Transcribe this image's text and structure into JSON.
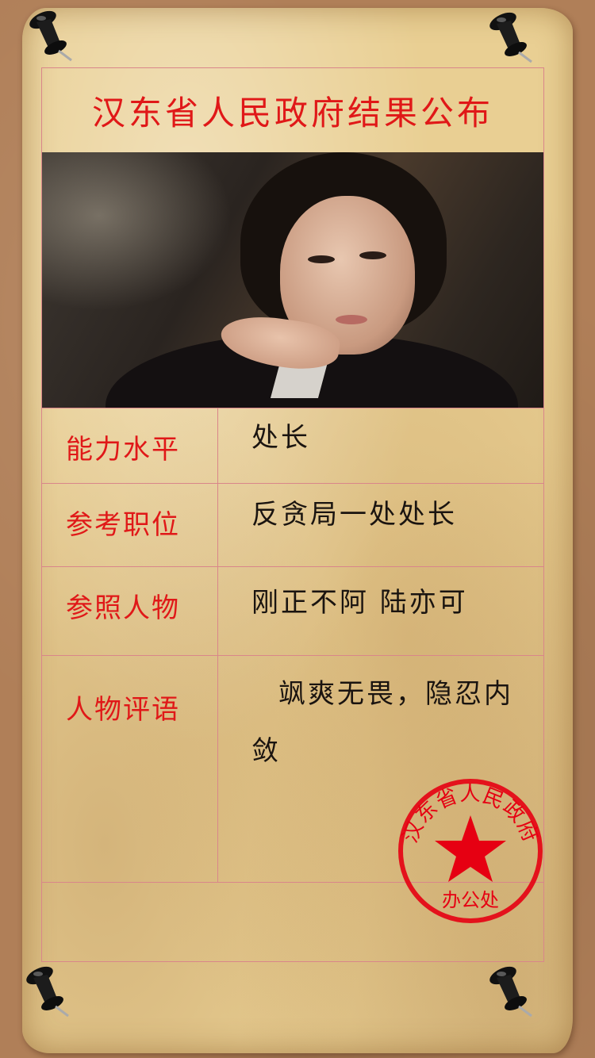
{
  "title": "汉东省人民政府结果公布",
  "rows": [
    {
      "label": "能力水平",
      "value": "处长"
    },
    {
      "label": "参考职位",
      "value": "反贪局一处处长"
    },
    {
      "label": "参照人物",
      "value": "刚正不阿 陆亦可"
    },
    {
      "label": "人物评语",
      "value": "飒爽无畏，隐忍内敛"
    }
  ],
  "stamp": {
    "arc_text": "汉东省人民政府",
    "bottom_text": "办公处",
    "color": "#e60012"
  },
  "colors": {
    "accent": "#e01818",
    "paper": "#e9cf93",
    "background": "#b07f58"
  }
}
